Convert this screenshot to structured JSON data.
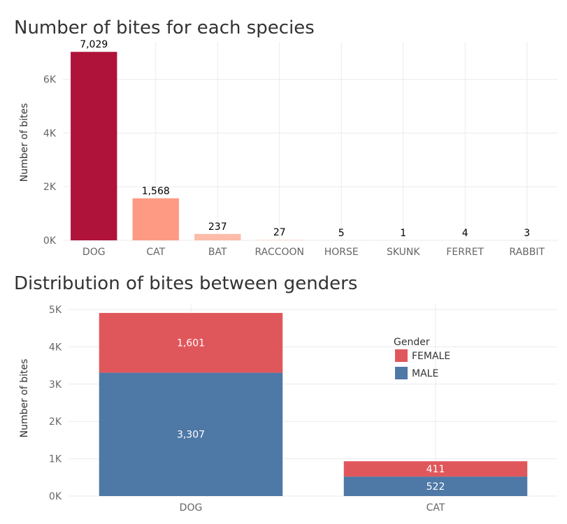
{
  "chart_data": [
    {
      "type": "bar",
      "title": "Number of bites for each species",
      "xlabel": "",
      "ylabel": "Number of bites",
      "categories": [
        "DOG",
        "CAT",
        "BAT",
        "RACCOON",
        "HORSE",
        "SKUNK",
        "FERRET",
        "RABBIT"
      ],
      "values": [
        7029,
        1568,
        237,
        27,
        5,
        1,
        4,
        3
      ],
      "value_labels": [
        "7,029",
        "1,568",
        "237",
        "27",
        "5",
        "1",
        "4",
        "3"
      ],
      "colors": [
        "#b0133a",
        "#fe9a83",
        "#fdbba9",
        "#fde0d5",
        "#fde0d5",
        "#fde0d5",
        "#fde0d5",
        "#fde0d5"
      ],
      "yticks": [
        0,
        2000,
        4000,
        6000
      ],
      "ytick_labels": [
        "0K",
        "2K",
        "4K",
        "6K"
      ],
      "ylim": [
        0,
        7400
      ],
      "grid": true,
      "legend": "none"
    },
    {
      "type": "bar",
      "stacked": true,
      "title": "Distribution of bites between genders",
      "xlabel": "",
      "ylabel": "Number of bites",
      "categories": [
        "DOG",
        "CAT"
      ],
      "series": [
        {
          "name": "MALE",
          "values": [
            3307,
            522
          ],
          "value_labels": [
            "3,307",
            "522"
          ],
          "color": "#4e78a6"
        },
        {
          "name": "FEMALE",
          "values": [
            1601,
            411
          ],
          "value_labels": [
            "1,601",
            "411"
          ],
          "color": "#e0575b"
        }
      ],
      "legend_title": "Gender",
      "legend_order": [
        "FEMALE",
        "MALE"
      ],
      "legend_position": "inside top-right",
      "yticks": [
        0,
        1000,
        2000,
        3000,
        4000,
        5000
      ],
      "ytick_labels": [
        "0K",
        "1K",
        "2K",
        "3K",
        "4K",
        "5K"
      ],
      "ylim": [
        0,
        5000
      ],
      "grid": true
    }
  ]
}
